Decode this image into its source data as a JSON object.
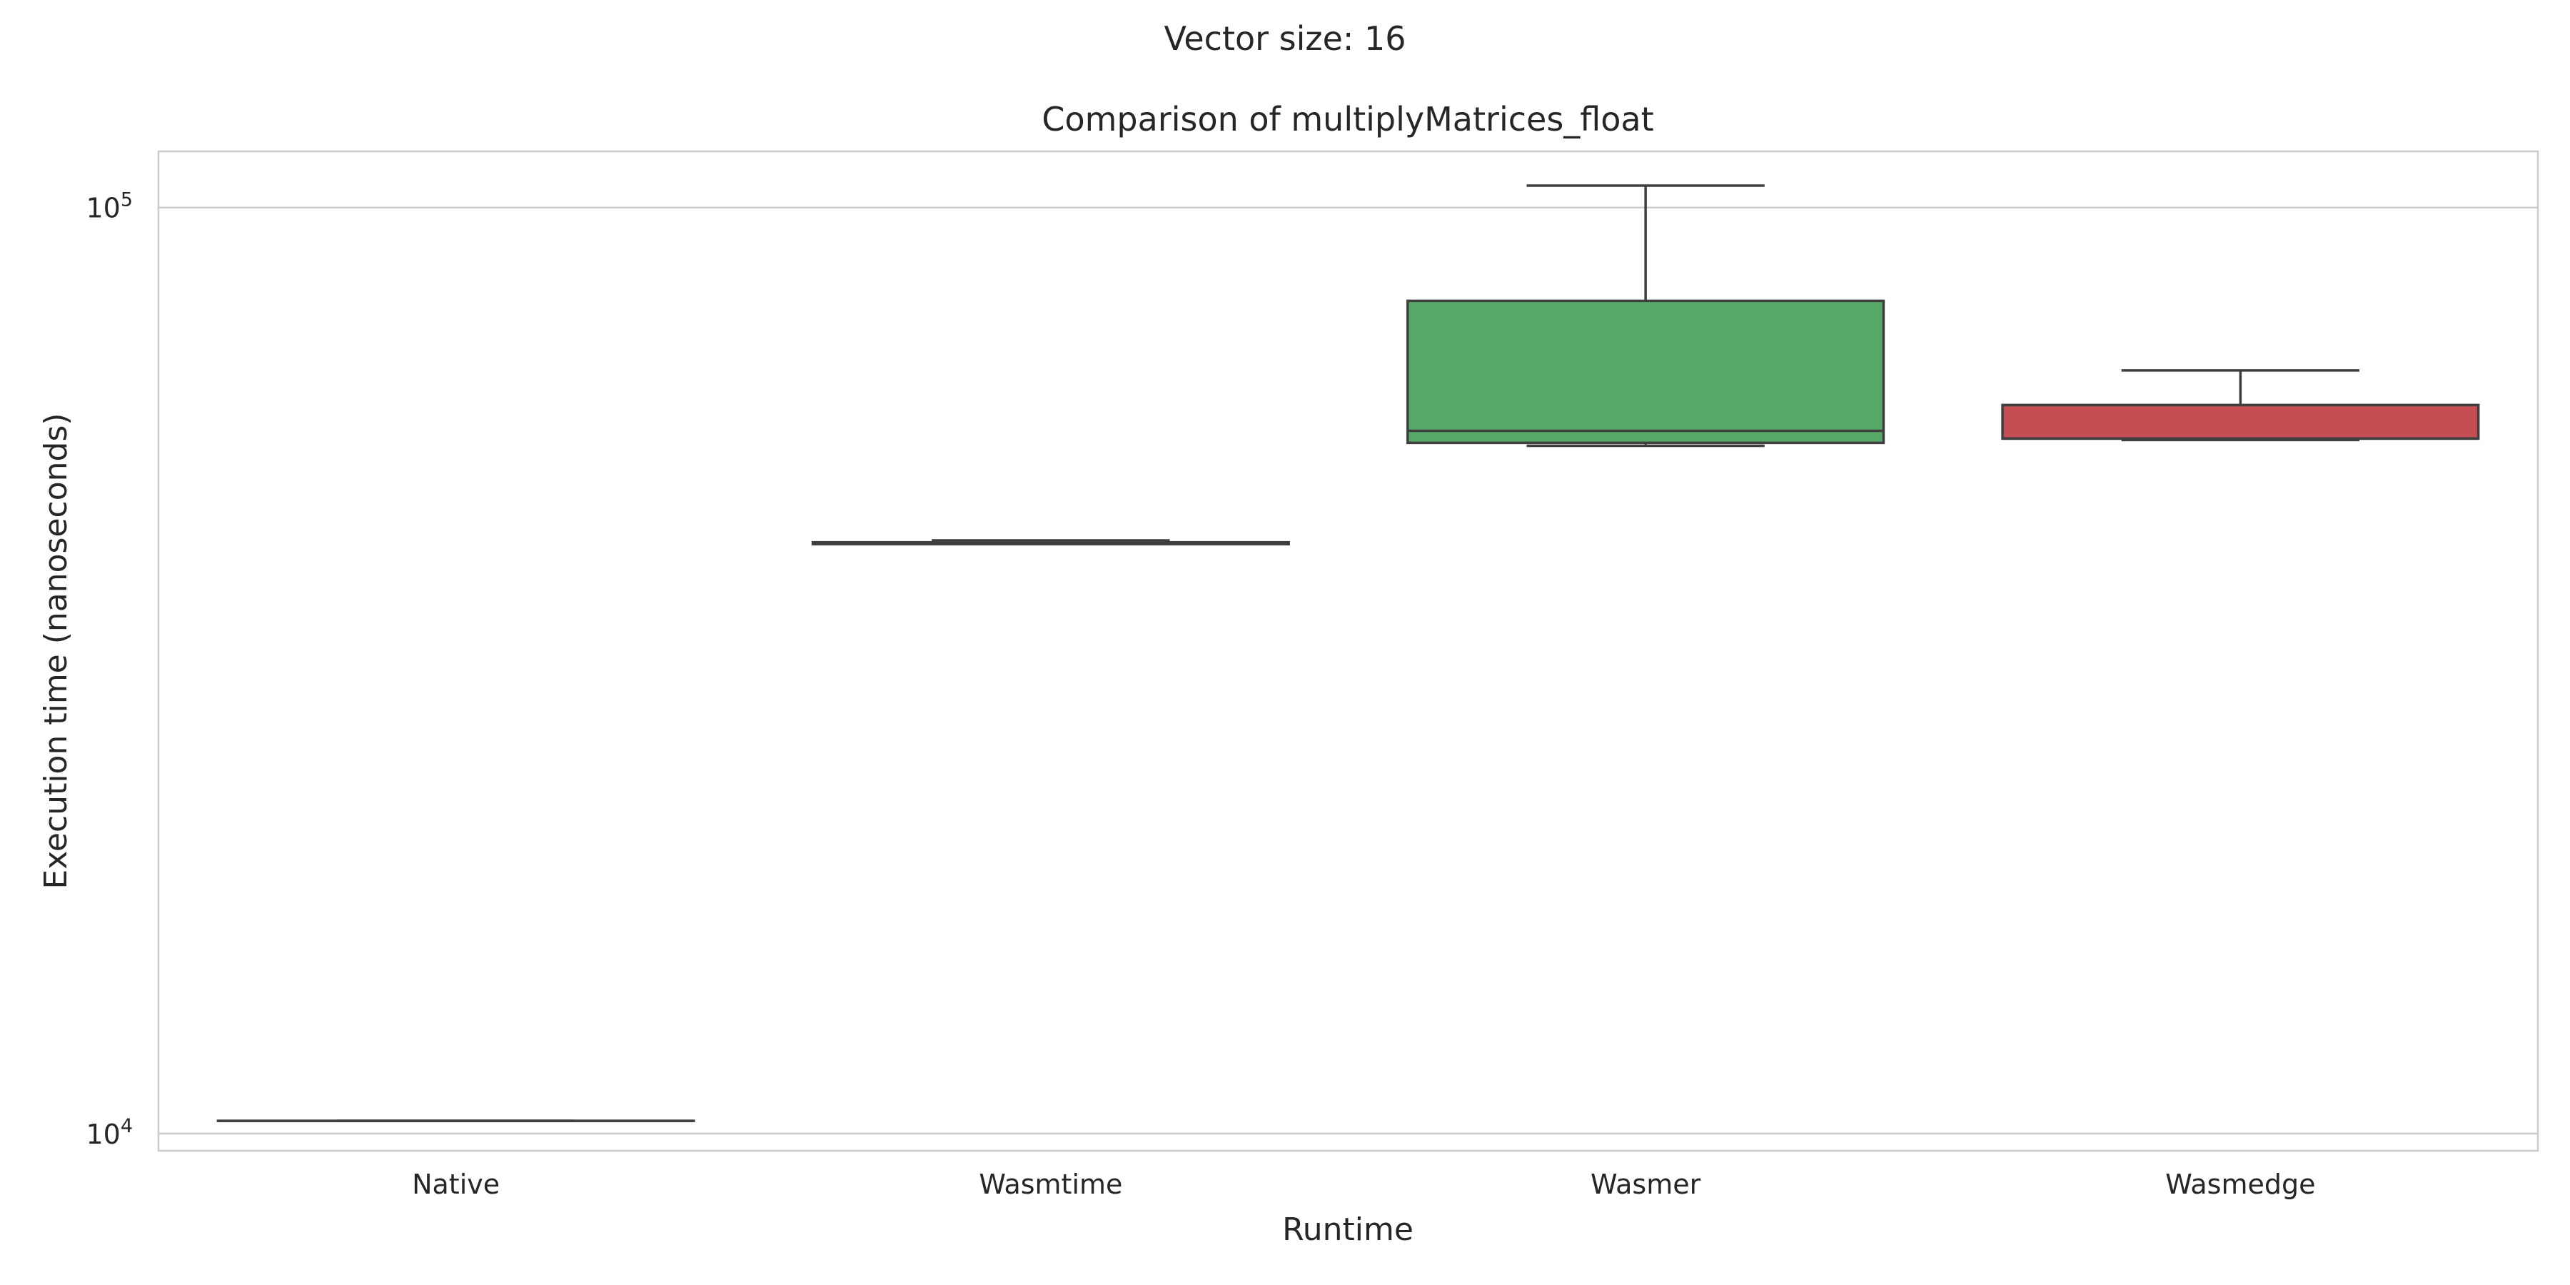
{
  "suptitle": "Vector size: 16",
  "chart_data": {
    "type": "box",
    "title": "Comparison of multiplyMatrices_float",
    "xlabel": "Runtime",
    "ylabel": "Execution time (nanoseconds)",
    "yscale": "log",
    "ylim": [
      9580,
      115000
    ],
    "yticks": [
      {
        "value": 10000,
        "base": "10",
        "exp": "4"
      },
      {
        "value": 100000,
        "base": "10",
        "exp": "5"
      }
    ],
    "grid": "horizontal",
    "categories": [
      "Native",
      "Wasmtime",
      "Wasmer",
      "Wasmedge"
    ],
    "boxes": [
      {
        "name": "Native",
        "color": "#4c72b0",
        "whisker_low": 10320,
        "q1": 10320,
        "median": 10320,
        "q3": 10320,
        "whisker_high": 10320
      },
      {
        "name": "Wasmtime",
        "color": "#dd8452",
        "whisker_low": 43300,
        "q1": 43300,
        "median": 43350,
        "q3": 43500,
        "whisker_high": 43700
      },
      {
        "name": "Wasmer",
        "color": "#55a868",
        "whisker_low": 55300,
        "q1": 55700,
        "median": 57400,
        "q3": 79300,
        "whisker_high": 105600
      },
      {
        "name": "Wasmedge",
        "color": "#c44e52",
        "whisker_low": 56100,
        "q1": 56300,
        "median": 56300,
        "q3": 61200,
        "whisker_high": 66700
      }
    ]
  }
}
